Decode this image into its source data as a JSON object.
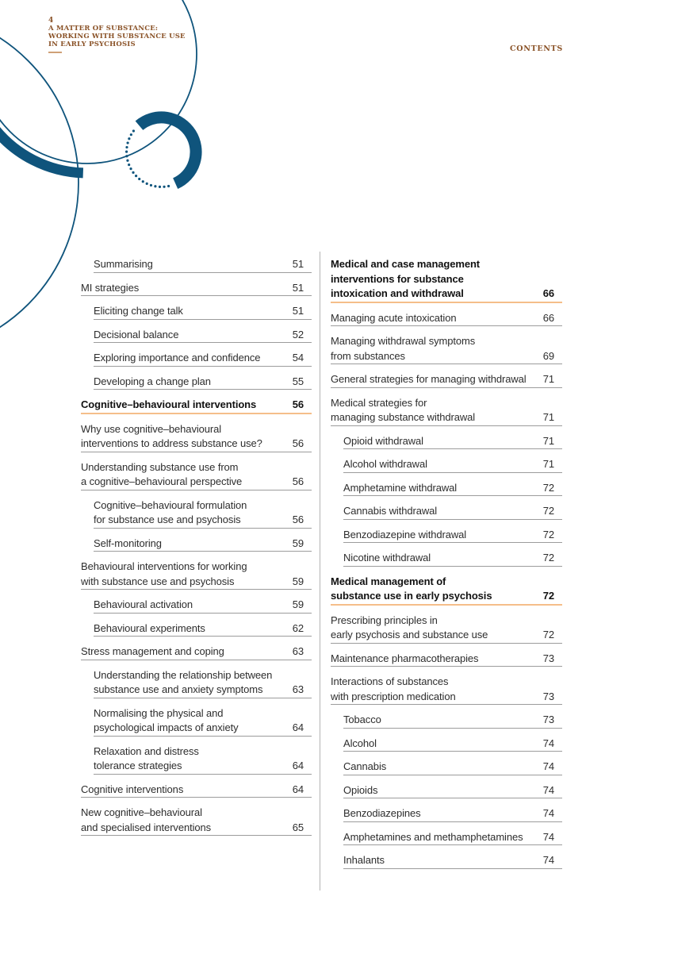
{
  "header": {
    "page_number": "4",
    "running_title_lines": [
      "A MATTER OF SUBSTANCE:",
      "WORKING WITH SUBSTANCE USE",
      "IN EARLY PSYCHOSIS"
    ],
    "section_label": "CONTENTS"
  },
  "colors": {
    "brand_blue": "#0f547c",
    "brown_text": "#8a5227",
    "tan_underline": "#cfa077",
    "orange_heading_rule": "#f5be8a",
    "gray_rule": "#9c9c9c",
    "column_divider": "#b3b3b3",
    "body_text": "#2d2d2d"
  },
  "toc": {
    "left": [
      {
        "lines": [
          "Summarising"
        ],
        "page": "51",
        "indent": true,
        "bold": false
      },
      {
        "lines": [
          "MI strategies"
        ],
        "page": "51",
        "indent": false,
        "bold": false
      },
      {
        "lines": [
          "Eliciting change talk"
        ],
        "page": "51",
        "indent": true,
        "bold": false
      },
      {
        "lines": [
          "Decisional balance"
        ],
        "page": "52",
        "indent": true,
        "bold": false
      },
      {
        "lines": [
          "Exploring importance and confidence"
        ],
        "page": "54",
        "indent": true,
        "bold": false
      },
      {
        "lines": [
          "Developing a change plan"
        ],
        "page": "55",
        "indent": true,
        "bold": false
      },
      {
        "lines": [
          "Cognitive–behavioural interventions"
        ],
        "page": "56",
        "indent": false,
        "bold": true
      },
      {
        "lines": [
          "Why use cognitive–behavioural",
          "interventions to address substance use?"
        ],
        "page": "56",
        "indent": false,
        "bold": false
      },
      {
        "lines": [
          "Understanding substance use from",
          "a cognitive–behavioural perspective"
        ],
        "page": "56",
        "indent": false,
        "bold": false
      },
      {
        "lines": [
          "Cognitive–behavioural formulation",
          "for substance use and psychosis"
        ],
        "page": "56",
        "indent": true,
        "bold": false
      },
      {
        "lines": [
          "Self-monitoring"
        ],
        "page": "59",
        "indent": true,
        "bold": false
      },
      {
        "lines": [
          "Behavioural interventions for working",
          "with substance use and psychosis"
        ],
        "page": "59",
        "indent": false,
        "bold": false
      },
      {
        "lines": [
          "Behavioural activation"
        ],
        "page": "59",
        "indent": true,
        "bold": false
      },
      {
        "lines": [
          "Behavioural experiments"
        ],
        "page": "62",
        "indent": true,
        "bold": false
      },
      {
        "lines": [
          "Stress management and coping"
        ],
        "page": "63",
        "indent": false,
        "bold": false
      },
      {
        "lines": [
          "Understanding the relationship between",
          "substance use and anxiety symptoms"
        ],
        "page": "63",
        "indent": true,
        "bold": false
      },
      {
        "lines": [
          "Normalising the physical and",
          "psychological impacts of anxiety"
        ],
        "page": "64",
        "indent": true,
        "bold": false
      },
      {
        "lines": [
          "Relaxation and distress",
          "tolerance strategies"
        ],
        "page": "64",
        "indent": true,
        "bold": false
      },
      {
        "lines": [
          "Cognitive interventions"
        ],
        "page": "64",
        "indent": false,
        "bold": false
      },
      {
        "lines": [
          "New cognitive–behavioural",
          "and specialised interventions"
        ],
        "page": "65",
        "indent": false,
        "bold": false
      }
    ],
    "right": [
      {
        "lines": [
          "Medical and case management",
          "interventions for substance",
          "intoxication and withdrawal"
        ],
        "page": "66",
        "indent": false,
        "bold": true
      },
      {
        "lines": [
          "Managing acute intoxication"
        ],
        "page": "66",
        "indent": false,
        "bold": false
      },
      {
        "lines": [
          "Managing withdrawal symptoms",
          "from substances"
        ],
        "page": "69",
        "indent": false,
        "bold": false
      },
      {
        "lines": [
          "General strategies for managing withdrawal"
        ],
        "page": "71",
        "indent": false,
        "bold": false
      },
      {
        "lines": [
          "Medical strategies for",
          "managing substance withdrawal"
        ],
        "page": "71",
        "indent": false,
        "bold": false
      },
      {
        "lines": [
          "Opioid withdrawal"
        ],
        "page": "71",
        "indent": true,
        "bold": false
      },
      {
        "lines": [
          "Alcohol withdrawal"
        ],
        "page": "71",
        "indent": true,
        "bold": false
      },
      {
        "lines": [
          "Amphetamine withdrawal"
        ],
        "page": "72",
        "indent": true,
        "bold": false
      },
      {
        "lines": [
          "Cannabis withdrawal"
        ],
        "page": "72",
        "indent": true,
        "bold": false
      },
      {
        "lines": [
          "Benzodiazepine withdrawal"
        ],
        "page": "72",
        "indent": true,
        "bold": false
      },
      {
        "lines": [
          "Nicotine withdrawal"
        ],
        "page": "72",
        "indent": true,
        "bold": false
      },
      {
        "lines": [
          "Medical management of",
          "substance use in early psychosis"
        ],
        "page": "72",
        "indent": false,
        "bold": true
      },
      {
        "lines": [
          "Prescribing principles in",
          "early psychosis and substance use"
        ],
        "page": "72",
        "indent": false,
        "bold": false
      },
      {
        "lines": [
          "Maintenance pharmacotherapies"
        ],
        "page": "73",
        "indent": false,
        "bold": false
      },
      {
        "lines": [
          "Interactions of substances",
          "with prescription medication"
        ],
        "page": "73",
        "indent": false,
        "bold": false
      },
      {
        "lines": [
          "Tobacco"
        ],
        "page": "73",
        "indent": true,
        "bold": false
      },
      {
        "lines": [
          "Alcohol"
        ],
        "page": "74",
        "indent": true,
        "bold": false
      },
      {
        "lines": [
          "Cannabis"
        ],
        "page": "74",
        "indent": true,
        "bold": false
      },
      {
        "lines": [
          "Opioids"
        ],
        "page": "74",
        "indent": true,
        "bold": false
      },
      {
        "lines": [
          "Benzodiazepines"
        ],
        "page": "74",
        "indent": true,
        "bold": false
      },
      {
        "lines": [
          "Amphetamines and methamphetamines"
        ],
        "page": "74",
        "indent": true,
        "bold": false
      },
      {
        "lines": [
          "Inhalants"
        ],
        "page": "74",
        "indent": true,
        "bold": false
      }
    ]
  }
}
